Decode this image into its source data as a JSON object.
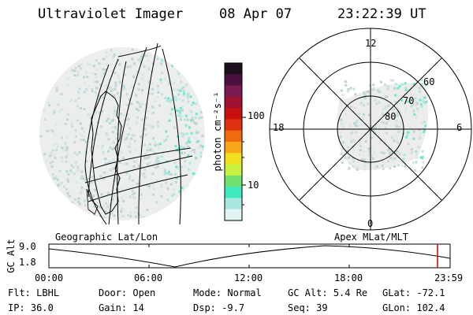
{
  "header": {
    "title": "Ultraviolet Imager",
    "date": "08 Apr 07",
    "time": "23:22:39 UT"
  },
  "colorbar": {
    "label": "photon cm⁻²s⁻¹",
    "ticks": [
      "100",
      "10"
    ],
    "colors": [
      "#1a0f1a",
      "#4a1040",
      "#7a1a50",
      "#a01030",
      "#c81010",
      "#e03010",
      "#f06a10",
      "#f8a818",
      "#f0e020",
      "#c8f040",
      "#70e070",
      "#40e8c0",
      "#a8e8e0",
      "#e0f4f4"
    ]
  },
  "polar_plot": {
    "mlt_labels": {
      "top": "12",
      "left": "18",
      "right": "6",
      "bottom": "0"
    },
    "lat_labels": [
      "60",
      "70",
      "80"
    ]
  },
  "map_labels": {
    "left": "Geographic Lat/Lon",
    "right": "Apex MLat/MLT"
  },
  "altitude_plot": {
    "ylabel": "GC Alt",
    "y_ticks": [
      "9.0",
      "1.8"
    ],
    "x_ticks": [
      "00:00",
      "06:00",
      "12:00",
      "18:00",
      "23:59"
    ],
    "current_time_color": "#cc0000"
  },
  "info": {
    "row1": [
      {
        "label": "Flt:",
        "value": "LBHL"
      },
      {
        "label": "Door:",
        "value": "Open"
      },
      {
        "label": "Mode:",
        "value": "Normal"
      },
      {
        "label": "GC Alt:",
        "value": "5.4 Re"
      },
      {
        "label": "GLat:",
        "value": "-72.1"
      }
    ],
    "row2": [
      {
        "label": "IP:",
        "value": "36.0"
      },
      {
        "label": "Gain:",
        "value": "14"
      },
      {
        "label": "Dsp:",
        "value": "-9.7"
      },
      {
        "label": "Seq:",
        "value": "39"
      },
      {
        "label": "GLon:",
        "value": "102.4"
      }
    ]
  }
}
